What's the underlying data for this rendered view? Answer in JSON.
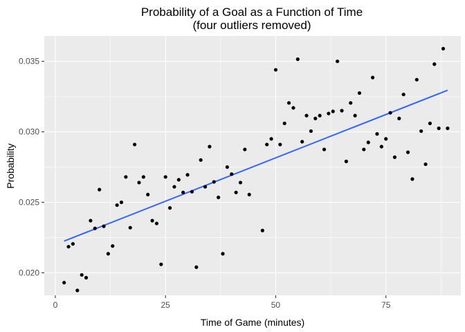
{
  "chart_data": {
    "type": "scatter",
    "title": "Probability of a Goal as a Function of Time",
    "subtitle": "(four outliers removed)",
    "xlabel": "Time of Game (minutes)",
    "ylabel": "Probability",
    "xlim": [
      -2.5,
      92
    ],
    "ylim": [
      0.0184,
      0.0368
    ],
    "x_ticks": [
      0,
      25,
      50,
      75
    ],
    "x_tick_labels": [
      "0",
      "25",
      "50",
      "75"
    ],
    "y_ticks": [
      0.02,
      0.025,
      0.03,
      0.035
    ],
    "y_tick_labels": [
      "0.020",
      "0.025",
      "0.030",
      "0.035"
    ],
    "grid": true,
    "background": "#ebebeb",
    "point_color": "#000000",
    "fit_color": "#3366ff",
    "points": [
      [
        2,
        0.0193
      ],
      [
        3,
        0.02185
      ],
      [
        4,
        0.02205
      ],
      [
        5,
        0.01875
      ],
      [
        6,
        0.01985
      ],
      [
        7,
        0.01965
      ],
      [
        8,
        0.0237
      ],
      [
        9,
        0.02315
      ],
      [
        10,
        0.0259
      ],
      [
        11,
        0.0233
      ],
      [
        12,
        0.02135
      ],
      [
        13,
        0.0219
      ],
      [
        14,
        0.0248
      ],
      [
        15,
        0.025
      ],
      [
        16,
        0.0268
      ],
      [
        17,
        0.0232
      ],
      [
        18,
        0.0291
      ],
      [
        19,
        0.0264
      ],
      [
        20,
        0.0268
      ],
      [
        21,
        0.02555
      ],
      [
        22,
        0.0237
      ],
      [
        23,
        0.0235
      ],
      [
        24,
        0.0206
      ],
      [
        25,
        0.0268
      ],
      [
        26,
        0.0246
      ],
      [
        27,
        0.0261
      ],
      [
        28,
        0.0266
      ],
      [
        29,
        0.0257
      ],
      [
        30,
        0.02695
      ],
      [
        31,
        0.02575
      ],
      [
        32,
        0.0204
      ],
      [
        33,
        0.028
      ],
      [
        34,
        0.0261
      ],
      [
        35,
        0.02895
      ],
      [
        36,
        0.02645
      ],
      [
        37,
        0.02535
      ],
      [
        38,
        0.02135
      ],
      [
        39,
        0.0275
      ],
      [
        40,
        0.027
      ],
      [
        41,
        0.0257
      ],
      [
        42,
        0.0264
      ],
      [
        43,
        0.02875
      ],
      [
        44,
        0.02555
      ],
      [
        47,
        0.023
      ],
      [
        48,
        0.0291
      ],
      [
        49,
        0.0295
      ],
      [
        50,
        0.0344
      ],
      [
        51,
        0.0291
      ],
      [
        52,
        0.0306
      ],
      [
        53,
        0.03205
      ],
      [
        54,
        0.0317
      ],
      [
        55,
        0.03515
      ],
      [
        56,
        0.0293
      ],
      [
        57,
        0.03115
      ],
      [
        58,
        0.03005
      ],
      [
        59,
        0.03095
      ],
      [
        60,
        0.03115
      ],
      [
        61,
        0.02875
      ],
      [
        62,
        0.0313
      ],
      [
        63,
        0.03145
      ],
      [
        64,
        0.035
      ],
      [
        65,
        0.0315
      ],
      [
        66,
        0.0279
      ],
      [
        67,
        0.03205
      ],
      [
        68,
        0.03115
      ],
      [
        69,
        0.03275
      ],
      [
        70,
        0.02875
      ],
      [
        71,
        0.02925
      ],
      [
        72,
        0.03385
      ],
      [
        73,
        0.02985
      ],
      [
        74,
        0.02895
      ],
      [
        75,
        0.0295
      ],
      [
        76,
        0.03135
      ],
      [
        77,
        0.0282
      ],
      [
        78,
        0.03095
      ],
      [
        79,
        0.03265
      ],
      [
        80,
        0.02855
      ],
      [
        81,
        0.02665
      ],
      [
        82,
        0.0337
      ],
      [
        83,
        0.03005
      ],
      [
        84,
        0.0277
      ],
      [
        85,
        0.0306
      ],
      [
        86,
        0.0348
      ],
      [
        87,
        0.03025
      ],
      [
        88,
        0.0359
      ],
      [
        89,
        0.03025
      ]
    ],
    "fit_line": [
      [
        2,
        0.02225
      ],
      [
        89,
        0.03295
      ]
    ]
  }
}
